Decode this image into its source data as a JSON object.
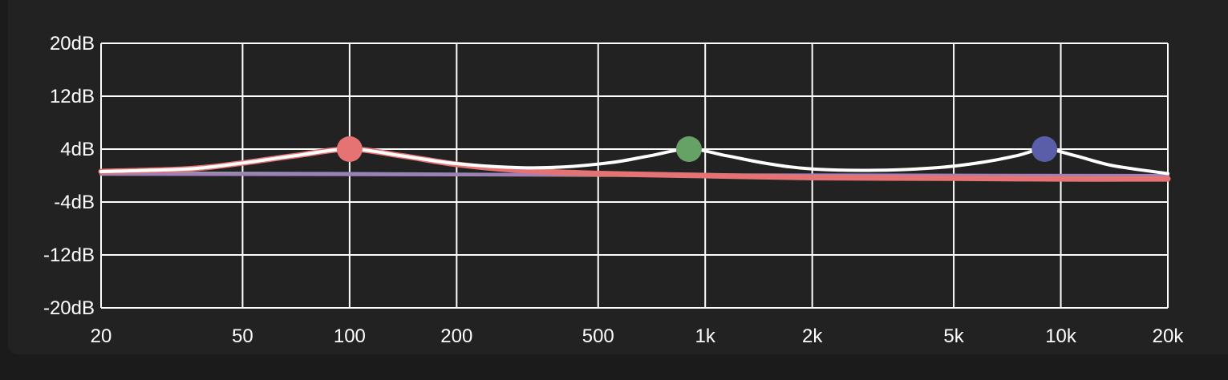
{
  "chart_data": {
    "type": "line",
    "x_scale": "log",
    "xlim": [
      20,
      20000
    ],
    "ylim": [
      -20,
      20
    ],
    "grid": true,
    "x_ticks": [
      {
        "value": 20,
        "label": "20"
      },
      {
        "value": 50,
        "label": "50"
      },
      {
        "value": 100,
        "label": "100"
      },
      {
        "value": 200,
        "label": "200"
      },
      {
        "value": 500,
        "label": "500"
      },
      {
        "value": 1000,
        "label": "1k"
      },
      {
        "value": 2000,
        "label": "2k"
      },
      {
        "value": 5000,
        "label": "5k"
      },
      {
        "value": 10000,
        "label": "10k"
      },
      {
        "value": 20000,
        "label": "20k"
      }
    ],
    "y_ticks": [
      {
        "value": 20,
        "label": "20dB"
      },
      {
        "value": 12,
        "label": "12dB"
      },
      {
        "value": 4,
        "label": "4dB"
      },
      {
        "value": -4,
        "label": "-4dB"
      },
      {
        "value": -12,
        "label": "-12dB"
      },
      {
        "value": -20,
        "label": "-20dB"
      }
    ],
    "bands": [
      {
        "freq": 100,
        "gain": 4,
        "color": "#e57373"
      },
      {
        "freq": 900,
        "gain": 4,
        "color": "#66a266"
      },
      {
        "freq": 9000,
        "gain": 4,
        "color": "#5a5ea8"
      }
    ],
    "series": [
      {
        "color": "#6f8fb0",
        "points": [
          [
            20,
            0.4
          ],
          [
            100,
            0.3
          ],
          [
            1000,
            0
          ],
          [
            20000,
            0
          ]
        ]
      },
      {
        "color": "#c8a37a",
        "points": [
          [
            20,
            0.3
          ],
          [
            1000,
            0
          ],
          [
            5000,
            -0.1
          ],
          [
            20000,
            -0.1
          ]
        ]
      },
      {
        "color": "#9e7fb8",
        "points": [
          [
            20,
            0.2
          ],
          [
            1000,
            0.1
          ],
          [
            20000,
            0
          ]
        ]
      },
      {
        "color": "#e57373",
        "points": [
          [
            20,
            0.6
          ],
          [
            35,
            1.0
          ],
          [
            50,
            1.9
          ],
          [
            70,
            3.0
          ],
          [
            100,
            4.0
          ],
          [
            140,
            3.0
          ],
          [
            200,
            1.7
          ],
          [
            300,
            0.8
          ],
          [
            500,
            0.3
          ],
          [
            1000,
            0
          ],
          [
            2000,
            -0.3
          ],
          [
            5000,
            -0.4
          ],
          [
            10000,
            -0.5
          ],
          [
            20000,
            -0.5
          ]
        ]
      },
      {
        "color": "#ffffff",
        "points": [
          [
            20,
            0.6
          ],
          [
            35,
            1.0
          ],
          [
            50,
            1.9
          ],
          [
            70,
            3.0
          ],
          [
            100,
            4.0
          ],
          [
            140,
            3.0
          ],
          [
            200,
            1.8
          ],
          [
            300,
            1.2
          ],
          [
            400,
            1.3
          ],
          [
            550,
            2.0
          ],
          [
            700,
            3.0
          ],
          [
            900,
            4.0
          ],
          [
            1150,
            3.0
          ],
          [
            1500,
            1.8
          ],
          [
            2000,
            1.0
          ],
          [
            3000,
            0.8
          ],
          [
            4500,
            1.2
          ],
          [
            6000,
            2.0
          ],
          [
            7500,
            3.0
          ],
          [
            9000,
            4.0
          ],
          [
            11000,
            3.0
          ],
          [
            14000,
            1.5
          ],
          [
            20000,
            0.3
          ]
        ]
      }
    ]
  }
}
